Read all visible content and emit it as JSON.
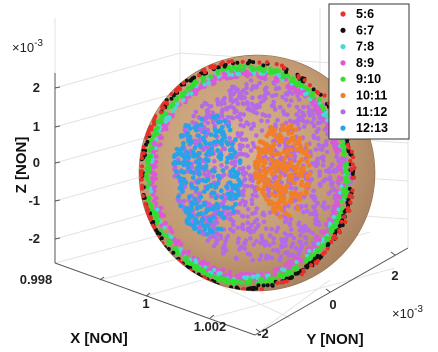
{
  "chart_data": {
    "type": "scatter",
    "projection": "3d",
    "xlabel": "X [NON]",
    "ylabel": "Y [NON]",
    "zlabel": "Z [NON]",
    "x_ticks": [
      "0.998",
      "1",
      "1.002"
    ],
    "y_ticks": [
      "-2",
      "0",
      "2"
    ],
    "z_ticks": [
      "-2",
      "-1",
      "0",
      "1",
      "2"
    ],
    "y_exponent": "×10",
    "y_exponent_power": "-3",
    "z_exponent": "×10",
    "z_exponent_power": "-3",
    "xlim": [
      0.997,
      1.003
    ],
    "ylim": [
      -0.0025,
      0.0025
    ],
    "zlim": [
      -0.0025,
      0.0025
    ],
    "sphere": {
      "center": [
        1.0,
        0.0,
        0.0
      ],
      "radius": 0.0023,
      "color": "#c9a27a"
    },
    "grid": true,
    "legend_position": "top-right",
    "series": [
      {
        "name": "5:6",
        "color": "#e8302a",
        "region": "outer-rim"
      },
      {
        "name": "6:7",
        "color": "#111111",
        "region": "outer-rim"
      },
      {
        "name": "7:8",
        "color": "#4dd6d6",
        "region": "ring"
      },
      {
        "name": "8:9",
        "color": "#d85ad8",
        "region": "ring"
      },
      {
        "name": "9:10",
        "color": "#33dd33",
        "region": "ring"
      },
      {
        "name": "10:11",
        "color": "#f07f2a",
        "region": "right-patch"
      },
      {
        "name": "11:12",
        "color": "#b36be6",
        "region": "interior"
      },
      {
        "name": "12:13",
        "color": "#2aa2e8",
        "region": "left-patch"
      }
    ]
  }
}
